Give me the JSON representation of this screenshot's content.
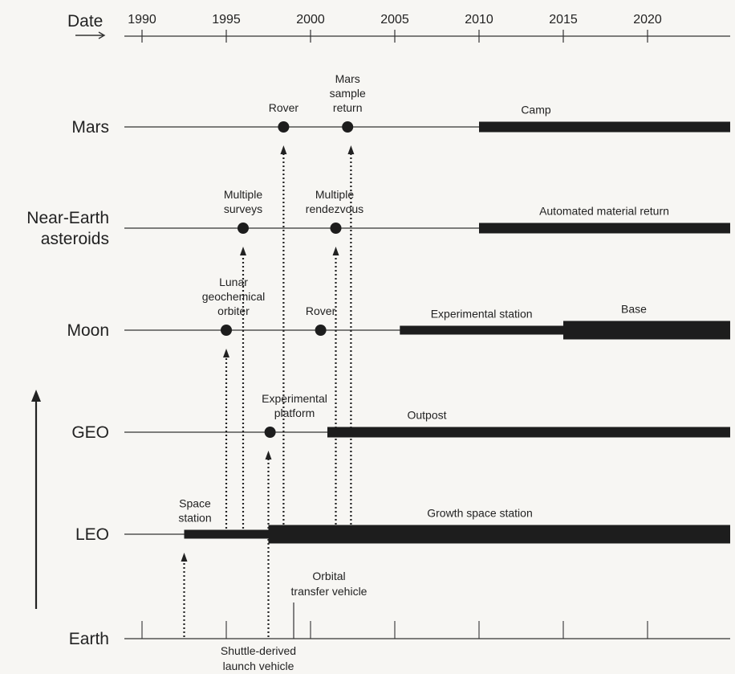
{
  "date_axis": {
    "title": "Date",
    "years": [
      1990,
      1995,
      2000,
      2005,
      2010,
      2015,
      2020
    ],
    "range": [
      1989,
      2025
    ]
  },
  "rows": [
    {
      "id": "mars",
      "label_lines": [
        "Mars"
      ]
    },
    {
      "id": "nea",
      "label_lines": [
        "Near-Earth",
        "asteroids"
      ]
    },
    {
      "id": "moon",
      "label_lines": [
        "Moon"
      ]
    },
    {
      "id": "geo",
      "label_lines": [
        "GEO"
      ]
    },
    {
      "id": "leo",
      "label_lines": [
        "LEO"
      ]
    },
    {
      "id": "earth",
      "label_lines": [
        "Earth"
      ]
    }
  ],
  "bars": [
    {
      "row": "mars",
      "start": 2010,
      "end": 2025,
      "weight": "thick",
      "label_lines": [
        "Camp"
      ]
    },
    {
      "row": "nea",
      "start": 2010,
      "end": 2025,
      "weight": "thick",
      "label_lines": [
        "Automated material return"
      ]
    },
    {
      "row": "moon",
      "start": 2005.3,
      "end": 2015,
      "weight": "medium",
      "label_lines": [
        "Experimental station"
      ]
    },
    {
      "row": "moon",
      "start": 2015,
      "end": 2025,
      "weight": "heavy",
      "label_lines": [
        "Base"
      ]
    },
    {
      "row": "geo",
      "start": 2001,
      "end": 2025,
      "weight": "thick",
      "label_lines": [
        "Outpost"
      ]
    },
    {
      "row": "leo",
      "start": 1992.5,
      "end": 1997.5,
      "weight": "medium",
      "label_lines": [
        "Space",
        "station"
      ]
    },
    {
      "row": "leo",
      "start": 1997.5,
      "end": 2025,
      "weight": "heavy",
      "label_lines": [
        "Growth space station"
      ]
    }
  ],
  "milestones": [
    {
      "row": "mars",
      "year": 1998.4,
      "label_lines": [
        "Rover"
      ]
    },
    {
      "row": "mars",
      "year": 2002.2,
      "label_lines": [
        "Mars",
        "sample",
        "return"
      ]
    },
    {
      "row": "nea",
      "year": 1996,
      "label_lines": [
        "Multiple",
        "surveys"
      ]
    },
    {
      "row": "nea",
      "year": 2001.5,
      "label_lines": [
        "Multiple",
        "rendezvous"
      ]
    },
    {
      "row": "moon",
      "year": 1995,
      "label_lines": [
        "Lunar",
        "geochemical",
        "orbiter"
      ]
    },
    {
      "row": "moon",
      "year": 2000.6,
      "label_lines": [
        "Rover"
      ]
    },
    {
      "row": "geo",
      "year": 1997.6,
      "label_lines": [
        "Experimental",
        "platform"
      ]
    }
  ],
  "links": [
    {
      "x": 1992.5,
      "from": "earth",
      "to": "leo"
    },
    {
      "x": 1995,
      "from": "leo",
      "to": "moon"
    },
    {
      "x": 1996,
      "from": "leo",
      "to": "nea"
    },
    {
      "x": 1997.5,
      "from": "earth",
      "to": "geo"
    },
    {
      "x": 1998.4,
      "from": "leo",
      "to": "mars"
    },
    {
      "x": 2001.5,
      "from": "leo",
      "to": "nea"
    },
    {
      "x": 2002.4,
      "from": "leo",
      "to": "mars"
    }
  ],
  "earth_launches": [
    {
      "year": 1997.5,
      "label_lines": [
        "Shuttle-derived",
        "launch vehicle"
      ],
      "label_side": "below"
    },
    {
      "year": 1999,
      "label_lines": [
        "Orbital",
        "transfer vehicle"
      ],
      "label_side": "above"
    }
  ]
}
